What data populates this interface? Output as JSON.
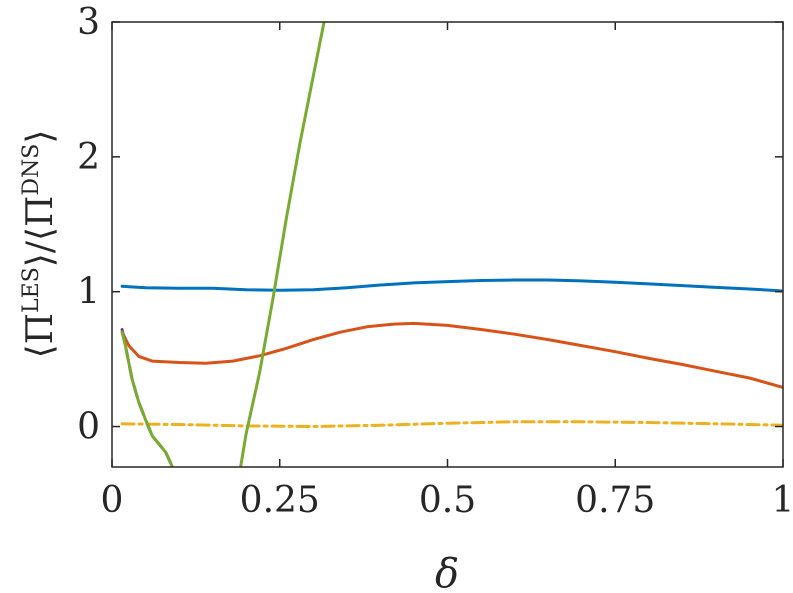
{
  "chart_data": {
    "type": "line",
    "xlabel": "δ",
    "ylabel": {
      "prefix": "⟨Π",
      "sup1": "LES",
      "middle": "⟩/⟨Π",
      "sup2": "DNS",
      "suffix": "⟩"
    },
    "xlim": [
      0,
      1
    ],
    "ylim": [
      -0.3,
      3
    ],
    "xticks": [
      0,
      0.25,
      0.5,
      0.75,
      1
    ],
    "xtick_labels": [
      "0",
      "0.25",
      "0.5",
      "0.75",
      "1"
    ],
    "yticks": [
      0,
      1,
      2,
      3
    ],
    "ytick_labels": [
      "0",
      "1",
      "2",
      "3"
    ],
    "grid": false,
    "series": [
      {
        "color": "#0072BD",
        "dash": "solid",
        "points": [
          [
            0.015,
            1.04
          ],
          [
            0.05,
            1.03
          ],
          [
            0.1,
            1.025
          ],
          [
            0.15,
            1.025
          ],
          [
            0.2,
            1.015
          ],
          [
            0.25,
            1.01
          ],
          [
            0.3,
            1.015
          ],
          [
            0.35,
            1.03
          ],
          [
            0.4,
            1.05
          ],
          [
            0.45,
            1.065
          ],
          [
            0.5,
            1.075
          ],
          [
            0.55,
            1.083
          ],
          [
            0.6,
            1.087
          ],
          [
            0.65,
            1.087
          ],
          [
            0.7,
            1.08
          ],
          [
            0.75,
            1.07
          ],
          [
            0.8,
            1.058
          ],
          [
            0.85,
            1.045
          ],
          [
            0.9,
            1.032
          ],
          [
            0.95,
            1.02
          ],
          [
            1.0,
            1.005
          ]
        ]
      },
      {
        "color": "#D95319",
        "dash": "solid",
        "points": [
          [
            0.015,
            0.7
          ],
          [
            0.025,
            0.6
          ],
          [
            0.04,
            0.52
          ],
          [
            0.06,
            0.485
          ],
          [
            0.1,
            0.475
          ],
          [
            0.14,
            0.47
          ],
          [
            0.18,
            0.485
          ],
          [
            0.22,
            0.525
          ],
          [
            0.26,
            0.58
          ],
          [
            0.3,
            0.645
          ],
          [
            0.34,
            0.7
          ],
          [
            0.38,
            0.74
          ],
          [
            0.42,
            0.76
          ],
          [
            0.45,
            0.765
          ],
          [
            0.5,
            0.75
          ],
          [
            0.55,
            0.72
          ],
          [
            0.6,
            0.685
          ],
          [
            0.65,
            0.645
          ],
          [
            0.7,
            0.6
          ],
          [
            0.75,
            0.555
          ],
          [
            0.8,
            0.505
          ],
          [
            0.85,
            0.46
          ],
          [
            0.9,
            0.41
          ],
          [
            0.95,
            0.36
          ],
          [
            1.0,
            0.29
          ]
        ]
      },
      {
        "color": "#EDB120",
        "dash": "dashdot",
        "points": [
          [
            0.015,
            0.02
          ],
          [
            0.1,
            0.015
          ],
          [
            0.2,
            0.005
          ],
          [
            0.3,
            0.0
          ],
          [
            0.4,
            0.01
          ],
          [
            0.5,
            0.025
          ],
          [
            0.6,
            0.035
          ],
          [
            0.7,
            0.035
          ],
          [
            0.8,
            0.03
          ],
          [
            0.9,
            0.02
          ],
          [
            1.0,
            0.01
          ]
        ]
      },
      {
        "color": "#7E2F8E",
        "dash": "dashed",
        "points": [
          [
            0.015,
            0.72
          ],
          [
            0.02,
            0.6
          ],
          [
            0.03,
            0.35
          ],
          [
            0.04,
            0.18
          ],
          [
            0.05,
            0.05
          ],
          [
            0.06,
            -0.07
          ],
          [
            0.07,
            -0.13
          ],
          [
            0.08,
            -0.19
          ],
          [
            0.09,
            -0.3
          ],
          [
            0.092,
            -0.33
          ]
        ]
      },
      {
        "color": "#77AC30",
        "dash": "solid",
        "points": [
          [
            0.015,
            0.7
          ],
          [
            0.02,
            0.6
          ],
          [
            0.03,
            0.35
          ],
          [
            0.04,
            0.18
          ],
          [
            0.05,
            0.05
          ],
          [
            0.06,
            -0.07
          ],
          [
            0.07,
            -0.13
          ],
          [
            0.08,
            -0.19
          ],
          [
            0.09,
            -0.3
          ],
          [
            0.092,
            -0.33
          ]
        ]
      },
      {
        "color": "#77AC30",
        "dash": "solid",
        "points": [
          [
            0.19,
            -0.35
          ],
          [
            0.2,
            -0.05
          ],
          [
            0.22,
            0.4
          ],
          [
            0.24,
            0.95
          ],
          [
            0.26,
            1.55
          ],
          [
            0.28,
            2.1
          ],
          [
            0.3,
            2.6
          ],
          [
            0.318,
            3.05
          ]
        ]
      }
    ]
  }
}
